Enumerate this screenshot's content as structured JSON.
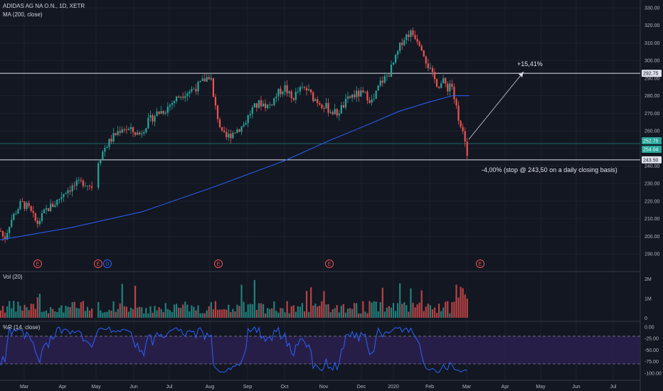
{
  "header": {
    "symbol_line": "ADIDAS AG NA O.N., 1D, XETR",
    "ma_label": "MA (200, close)"
  },
  "chart_data": [
    {
      "type": "candlestick",
      "title": "ADIDAS AG NA O.N., 1D, XETR",
      "x_ticks": [
        "Mar",
        "Apr",
        "May",
        "Jun",
        "Jul",
        "Aug",
        "Sep",
        "Oct",
        "Nov",
        "Dec",
        "2020",
        "Feb",
        "Mar",
        "Apr",
        "May",
        "Jun",
        "Jul"
      ],
      "y_ticks": [
        "330.00",
        "320.00",
        "310.00",
        "300.00",
        "290.00",
        "280.00",
        "270.00",
        "260.00",
        "250.00",
        "240.00",
        "230.00",
        "220.00",
        "210.00",
        "200.00",
        "190.00"
      ],
      "ylim": [
        184,
        332
      ],
      "price_points": [
        [
          0,
          204
        ],
        [
          6,
          198
        ],
        [
          14,
          208
        ],
        [
          22,
          214
        ],
        [
          30,
          219
        ],
        [
          40,
          216
        ],
        [
          52,
          207
        ],
        [
          65,
          215
        ],
        [
          78,
          219
        ],
        [
          92,
          226
        ],
        [
          106,
          229
        ],
        [
          118,
          231
        ],
        [
          126,
          229
        ],
        [
          134,
          228
        ],
        [
          138,
          243
        ],
        [
          148,
          251
        ],
        [
          160,
          257
        ],
        [
          172,
          262
        ],
        [
          184,
          260
        ],
        [
          196,
          258
        ],
        [
          208,
          265
        ],
        [
          220,
          270
        ],
        [
          232,
          272
        ],
        [
          244,
          277
        ],
        [
          256,
          281
        ],
        [
          268,
          283
        ],
        [
          280,
          286
        ],
        [
          290,
          290
        ],
        [
          296,
          292
        ],
        [
          300,
          278
        ],
        [
          306,
          268
        ],
        [
          312,
          258
        ],
        [
          318,
          256
        ],
        [
          330,
          260
        ],
        [
          342,
          263
        ],
        [
          354,
          272
        ],
        [
          366,
          276
        ],
        [
          378,
          274
        ],
        [
          390,
          281
        ],
        [
          400,
          285
        ],
        [
          410,
          278
        ],
        [
          420,
          283
        ],
        [
          430,
          284
        ],
        [
          440,
          279
        ],
        [
          450,
          276
        ],
        [
          460,
          273
        ],
        [
          466,
          271
        ],
        [
          474,
          270
        ],
        [
          482,
          274
        ],
        [
          494,
          280
        ],
        [
          506,
          281
        ],
        [
          516,
          280
        ],
        [
          524,
          276
        ],
        [
          534,
          287
        ],
        [
          546,
          292
        ],
        [
          556,
          301
        ],
        [
          566,
          312
        ],
        [
          576,
          316
        ],
        [
          584,
          314
        ],
        [
          592,
          309
        ],
        [
          600,
          299
        ],
        [
          608,
          291
        ],
        [
          616,
          286
        ],
        [
          624,
          288
        ],
        [
          630,
          284
        ],
        [
          634,
          289
        ],
        [
          638,
          279
        ],
        [
          642,
          272
        ],
        [
          646,
          266
        ],
        [
          650,
          260
        ],
        [
          654,
          251
        ],
        [
          656,
          247
        ],
        [
          658,
          249
        ]
      ],
      "ma200_points": [
        [
          0,
          198
        ],
        [
          100,
          205
        ],
        [
          200,
          214
        ],
        [
          300,
          228
        ],
        [
          400,
          243
        ],
        [
          460,
          254
        ],
        [
          520,
          264
        ],
        [
          560,
          271
        ],
        [
          600,
          276
        ],
        [
          636,
          280
        ],
        [
          660,
          280
        ]
      ],
      "resistance_level": 292.75,
      "last_price": 252.75,
      "ma_value": 254.04,
      "support_level": 243.5,
      "price_labels": [
        "292.75",
        "252.75",
        "254.04",
        "243.50"
      ],
      "earnings_markers": [
        "E",
        "E",
        "D",
        "E",
        "E",
        "E"
      ],
      "annotations": [
        "+15,41%",
        "-4,00% (stop @ 243,50 on a  daily closing basis)"
      ]
    },
    {
      "type": "bar",
      "title": "Vol (20)",
      "y_ticks": [
        "2M",
        "1M",
        "0"
      ]
    },
    {
      "type": "line",
      "title": "%R (14, close)",
      "y_ticks": [
        "0.00",
        "-25.00",
        "-50.00",
        "-75.00",
        "-100.00"
      ],
      "ylim": [
        -108,
        3
      ],
      "bands": [
        -20,
        -80
      ]
    }
  ],
  "colors": {
    "bg": "#131722",
    "up": "#26a69a",
    "down": "#ef5350",
    "ma": "#2962ff",
    "wr": "#2962ff",
    "band_fill": "#2a1f4d",
    "grid": "#1e222d",
    "level_line": "#e0e3eb",
    "teal_line": "#26a69a"
  }
}
